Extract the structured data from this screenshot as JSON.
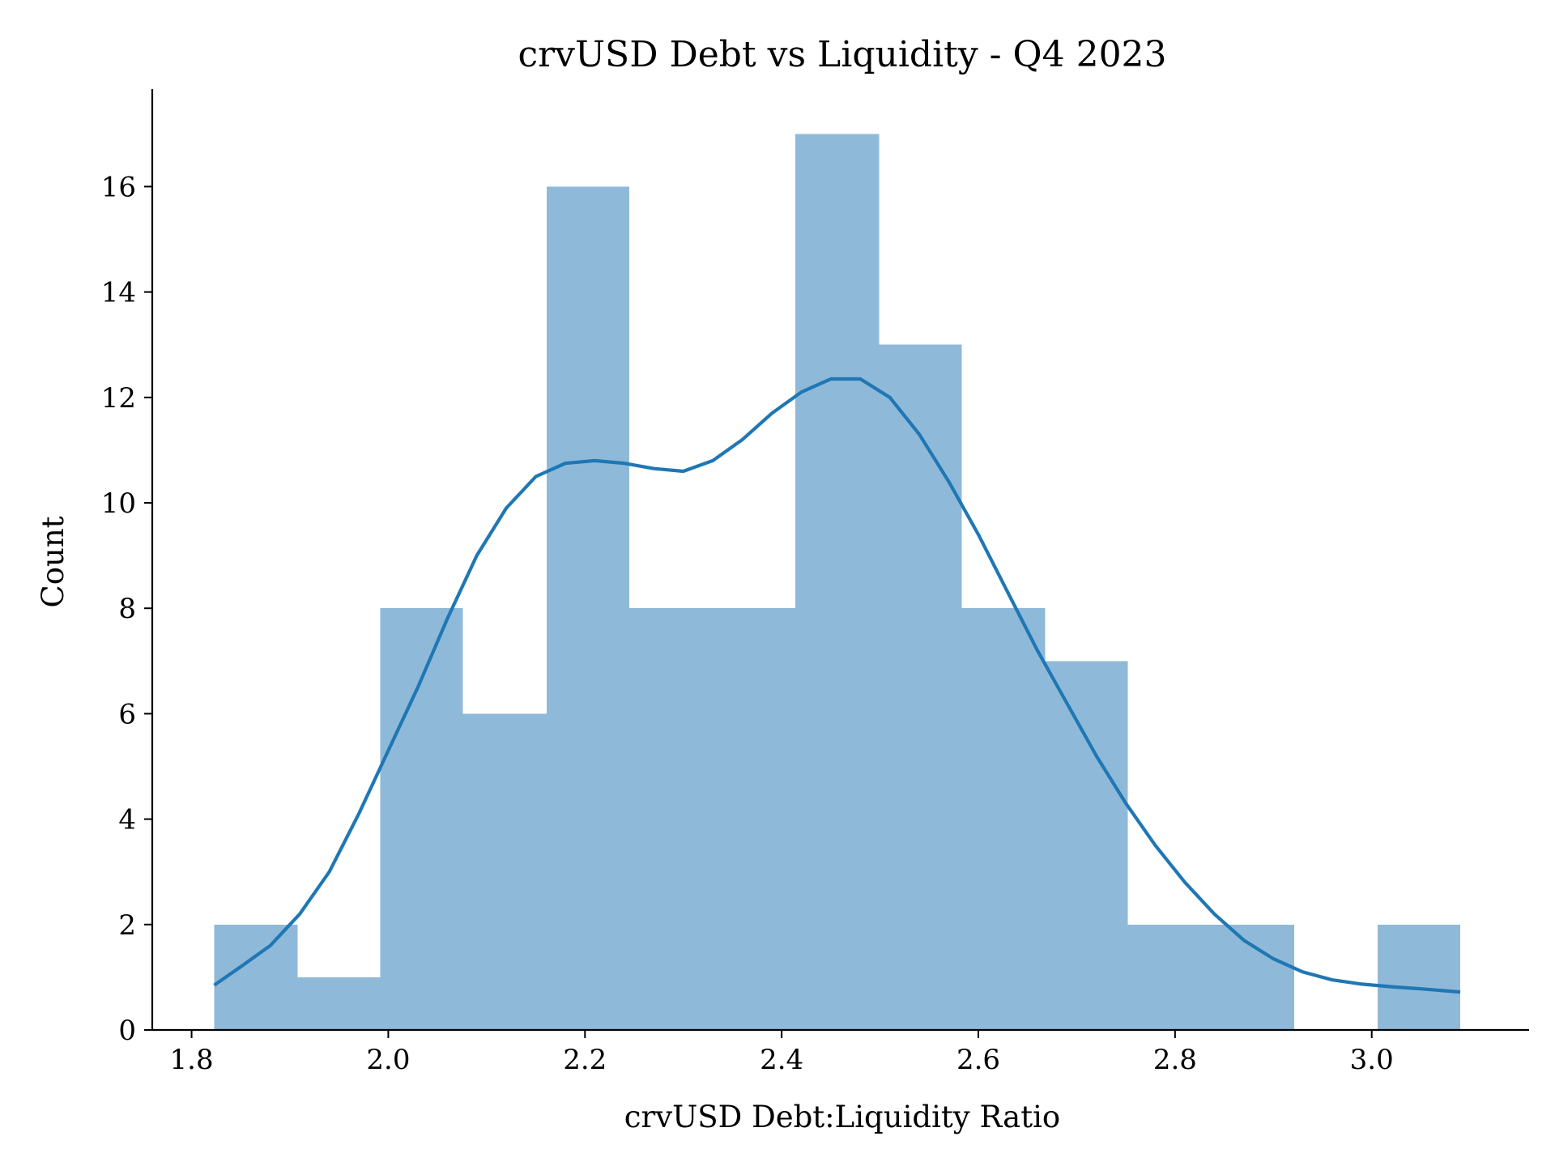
{
  "chart_data": {
    "type": "bar",
    "title": "crvUSD Debt vs Liquidity - Q4 2023",
    "xlabel": "crvUSD Debt:Liquidity Ratio",
    "ylabel": "Count",
    "xlim": [
      1.76,
      3.16
    ],
    "ylim": [
      0,
      17.85
    ],
    "xticks": [
      1.8,
      2.0,
      2.2,
      2.4,
      2.6,
      2.8,
      3.0
    ],
    "xtick_labels": [
      "1.8",
      "2.0",
      "2.2",
      "2.4",
      "2.6",
      "2.8",
      "3.0"
    ],
    "yticks": [
      0,
      2,
      4,
      6,
      8,
      10,
      12,
      14,
      16
    ],
    "ytick_labels": [
      "0",
      "2",
      "4",
      "6",
      "8",
      "10",
      "12",
      "14",
      "16"
    ],
    "bins": [
      {
        "x0": 1.823,
        "x1": 1.908,
        "count": 2
      },
      {
        "x0": 1.908,
        "x1": 1.992,
        "count": 1
      },
      {
        "x0": 1.992,
        "x1": 2.076,
        "count": 8
      },
      {
        "x0": 2.076,
        "x1": 2.161,
        "count": 6
      },
      {
        "x0": 2.161,
        "x1": 2.245,
        "count": 16
      },
      {
        "x0": 2.245,
        "x1": 2.33,
        "count": 8
      },
      {
        "x0": 2.33,
        "x1": 2.414,
        "count": 8
      },
      {
        "x0": 2.414,
        "x1": 2.499,
        "count": 17
      },
      {
        "x0": 2.499,
        "x1": 2.583,
        "count": 13
      },
      {
        "x0": 2.583,
        "x1": 2.668,
        "count": 8
      },
      {
        "x0": 2.668,
        "x1": 2.752,
        "count": 7
      },
      {
        "x0": 2.752,
        "x1": 2.837,
        "count": 2
      },
      {
        "x0": 2.837,
        "x1": 2.921,
        "count": 2
      },
      {
        "x0": 2.921,
        "x1": 3.006,
        "count": 0
      },
      {
        "x0": 3.006,
        "x1": 3.09,
        "count": 2
      }
    ],
    "kde": {
      "x": [
        1.823,
        1.85,
        1.88,
        1.91,
        1.94,
        1.97,
        2.0,
        2.03,
        2.06,
        2.09,
        2.12,
        2.15,
        2.18,
        2.21,
        2.24,
        2.27,
        2.3,
        2.33,
        2.36,
        2.39,
        2.42,
        2.45,
        2.48,
        2.51,
        2.54,
        2.57,
        2.6,
        2.63,
        2.66,
        2.69,
        2.72,
        2.75,
        2.78,
        2.81,
        2.84,
        2.87,
        2.9,
        2.93,
        2.96,
        2.99,
        3.02,
        3.05,
        3.09
      ],
      "y": [
        0.85,
        1.2,
        1.6,
        2.2,
        3.0,
        4.1,
        5.3,
        6.5,
        7.8,
        9.0,
        9.9,
        10.5,
        10.75,
        10.8,
        10.75,
        10.65,
        10.6,
        10.8,
        11.2,
        11.7,
        12.1,
        12.35,
        12.35,
        12.0,
        11.3,
        10.4,
        9.4,
        8.3,
        7.2,
        6.2,
        5.2,
        4.3,
        3.5,
        2.8,
        2.2,
        1.7,
        1.35,
        1.1,
        0.95,
        0.87,
        0.82,
        0.78,
        0.72
      ]
    },
    "grid": false,
    "colors": {
      "bar": "#8fb9d9",
      "kde": "#1f77b4",
      "axis": "#000000"
    }
  }
}
